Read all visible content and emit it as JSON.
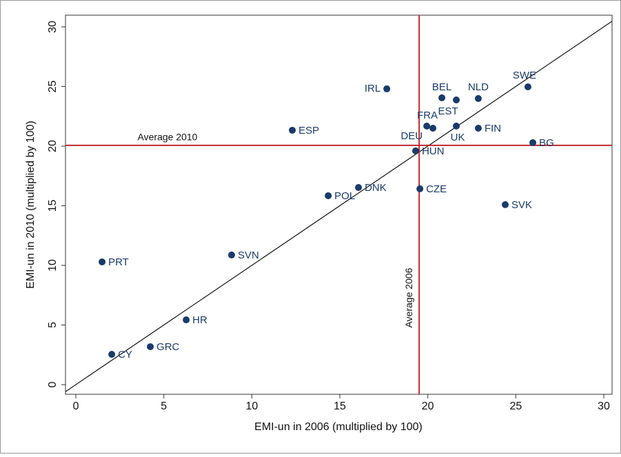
{
  "chart_data": {
    "type": "scatter",
    "xlabel": "EMI-un in 2006 (multiplied by 100)",
    "ylabel": "EMI-un in 2010 (multiplied by 100)",
    "labels": [
      "PRT",
      "CY",
      "GRC",
      "HR",
      "SVN",
      "ESP",
      "POL",
      "DNK",
      "IRL",
      "HUN",
      "CZE",
      "DEU",
      "FRA",
      "BEL",
      "EST",
      "NLD",
      "UK",
      "FIN",
      "SWE",
      "BG",
      "SVK"
    ],
    "x": [
      1.49,
      2.04,
      4.23,
      6.27,
      8.85,
      12.3,
      14.34,
      16.06,
      17.67,
      19.31,
      19.55,
      19.94,
      20.29,
      20.8,
      21.62,
      22.87,
      21.62,
      22.87,
      25.69,
      25.97,
      24.4
    ],
    "values": [
      10.29,
      2.54,
      3.18,
      5.43,
      10.87,
      21.33,
      15.84,
      16.53,
      24.8,
      19.6,
      16.42,
      21.68,
      21.5,
      24.05,
      23.87,
      23.99,
      21.68,
      21.5,
      24.97,
      20.29,
      15.09
    ],
    "color": "#1a3a6b",
    "xlim": [
      -0.59,
      30.47
    ],
    "ylim": [
      -0.81,
      30.98
    ],
    "xticks": [
      0,
      5,
      10,
      15,
      20,
      25,
      30
    ],
    "yticks": [
      0,
      5,
      10,
      15,
      20,
      25,
      30
    ],
    "reference_lines": [
      {
        "axis": "x",
        "value": 19.51,
        "label": "Average 2006",
        "color": "#c0282d"
      },
      {
        "axis": "y",
        "value": 20.06,
        "label": "Average 2010",
        "color": "#c0282d"
      }
    ],
    "diagonal": true
  }
}
